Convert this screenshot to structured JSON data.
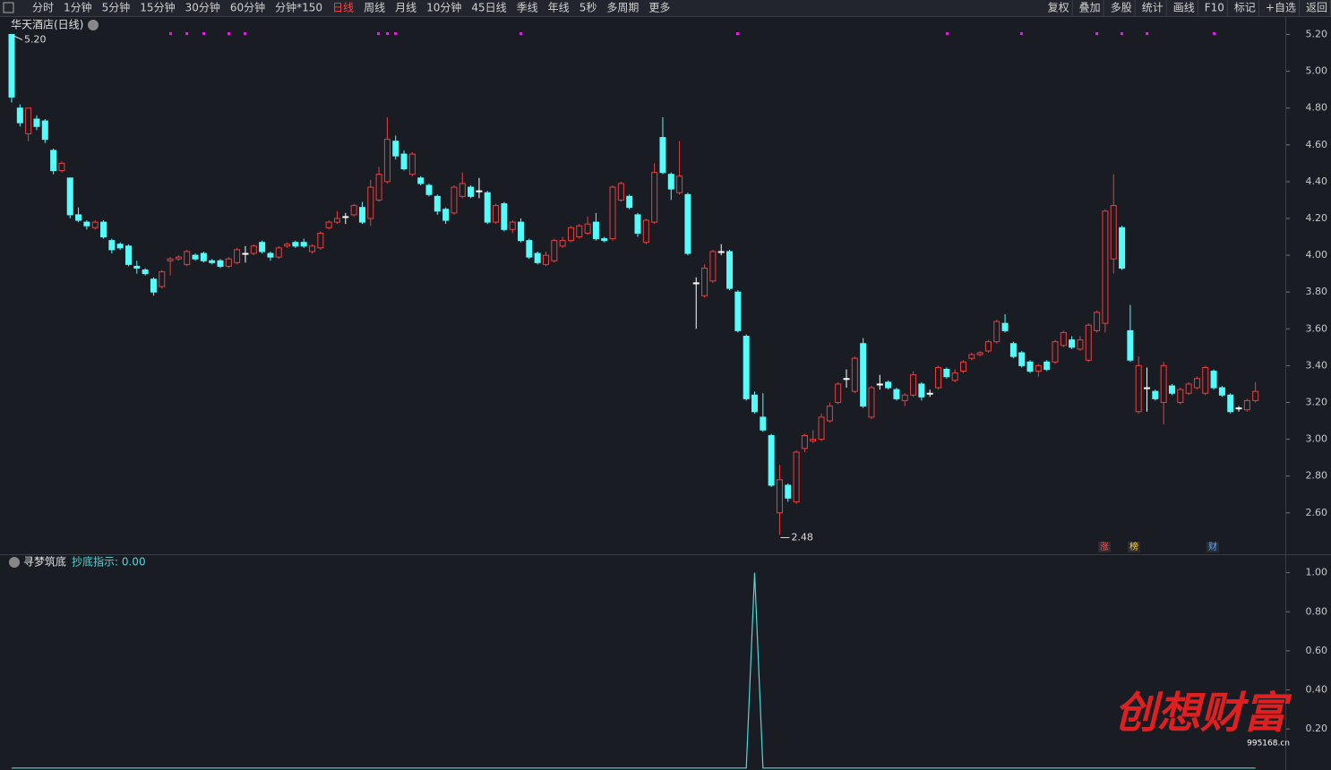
{
  "toolbar": {
    "left": [
      "分时",
      "1分钟",
      "5分钟",
      "15分钟",
      "30分钟",
      "60分钟",
      "分钟*150",
      "日线",
      "周线",
      "月线",
      "10分钟",
      "45日线",
      "季线",
      "年线",
      "5秒",
      "多周期",
      "更多"
    ],
    "active_index": 7,
    "right": [
      "复权",
      "叠加",
      "多股",
      "统计",
      "画线",
      "F10",
      "标记",
      "+自选",
      "返回"
    ]
  },
  "watermark": {
    "title": "创想财富",
    "site": "995168.cn"
  },
  "chart_data": [
    {
      "type": "candlestick",
      "title": "华天酒店(日线)",
      "up_color": "#e8403f",
      "down_color": "#54fcfc",
      "open": [
        5.2,
        4.8,
        4.66,
        4.74,
        4.73,
        4.57,
        4.46,
        4.42,
        4.22,
        4.18,
        4.15,
        4.18,
        4.08,
        4.06,
        4.05,
        3.94,
        3.92,
        3.87,
        3.83,
        3.97,
        3.98,
        3.95,
        4.0,
        4.01,
        3.97,
        3.97,
        3.94,
        3.96,
        4.01,
        4.01,
        4.07,
        4.01,
        3.99,
        4.05,
        4.07,
        4.07,
        4.02,
        4.04,
        4.15,
        4.18,
        4.21,
        4.22,
        4.26,
        4.2,
        4.3,
        4.4,
        4.62,
        4.55,
        4.44,
        4.42,
        4.38,
        4.32,
        4.25,
        4.23,
        4.32,
        4.37,
        4.35,
        4.34,
        4.18,
        4.28,
        4.14,
        4.18,
        4.08,
        4.01,
        3.95,
        3.97,
        4.05,
        4.08,
        4.1,
        4.12,
        4.18,
        4.09,
        4.09,
        4.3,
        4.32,
        4.22,
        4.07,
        4.18,
        4.64,
        4.44,
        4.34,
        4.33,
        3.85,
        3.78,
        3.86,
        4.02,
        4.02,
        3.8,
        3.56,
        3.24,
        3.12,
        3.02,
        2.6,
        2.75,
        2.66,
        2.95,
        2.99,
        3.0,
        3.1,
        3.2,
        3.33,
        3.26,
        3.52,
        3.12,
        3.3,
        3.31,
        3.27,
        3.21,
        3.24,
        3.3,
        3.25,
        3.28,
        3.38,
        3.32,
        3.37,
        3.44,
        3.46,
        3.48,
        3.53,
        3.63,
        3.52,
        3.47,
        3.42,
        3.37,
        3.42,
        3.42,
        3.51,
        3.54,
        3.49,
        3.43,
        3.59,
        3.63,
        3.98,
        4.15,
        3.59,
        3.15,
        3.28,
        3.26,
        3.2,
        3.29,
        3.2,
        3.25,
        3.28,
        3.25,
        3.37,
        3.28,
        3.24,
        3.17,
        3.16,
        3.21
      ],
      "high": [
        5.2,
        4.82,
        4.8,
        4.76,
        4.74,
        4.58,
        4.51,
        4.42,
        4.26,
        4.19,
        4.19,
        4.19,
        4.09,
        4.07,
        4.06,
        3.97,
        3.93,
        3.88,
        3.92,
        3.99,
        4.0,
        4.03,
        4.01,
        4.02,
        3.98,
        3.98,
        3.99,
        4.04,
        4.05,
        4.06,
        4.08,
        4.02,
        4.05,
        4.07,
        4.08,
        4.09,
        4.06,
        4.13,
        4.19,
        4.24,
        4.23,
        4.28,
        4.29,
        4.41,
        4.48,
        4.75,
        4.65,
        4.57,
        4.56,
        4.43,
        4.39,
        4.33,
        4.26,
        4.38,
        4.45,
        4.38,
        4.42,
        4.35,
        4.28,
        4.29,
        4.19,
        4.2,
        4.09,
        4.02,
        4.02,
        4.09,
        4.1,
        4.16,
        4.17,
        4.21,
        4.23,
        4.1,
        4.38,
        4.4,
        4.33,
        4.23,
        4.2,
        4.5,
        4.75,
        4.45,
        4.62,
        4.34,
        3.88,
        3.95,
        4.03,
        4.06,
        4.03,
        3.81,
        3.57,
        3.26,
        3.25,
        3.03,
        2.86,
        2.76,
        2.94,
        3.03,
        3.05,
        3.14,
        3.2,
        3.31,
        3.38,
        3.45,
        3.55,
        3.29,
        3.35,
        3.32,
        3.28,
        3.25,
        3.37,
        3.31,
        3.27,
        3.4,
        3.39,
        3.38,
        3.43,
        3.47,
        3.48,
        3.54,
        3.65,
        3.68,
        3.53,
        3.48,
        3.43,
        3.41,
        3.43,
        3.54,
        3.59,
        3.56,
        3.56,
        3.63,
        3.7,
        4.25,
        4.44,
        4.16,
        3.73,
        3.45,
        3.39,
        3.27,
        3.42,
        3.3,
        3.28,
        3.31,
        3.34,
        3.4,
        3.38,
        3.29,
        3.25,
        3.18,
        3.22,
        3.31
      ],
      "low": [
        4.83,
        4.7,
        4.62,
        4.68,
        4.61,
        4.44,
        4.45,
        4.2,
        4.18,
        4.14,
        4.14,
        4.09,
        4.01,
        4.03,
        3.94,
        3.9,
        3.89,
        3.78,
        3.82,
        3.89,
        3.97,
        3.94,
        3.97,
        3.96,
        3.95,
        3.93,
        3.93,
        3.95,
        3.96,
        4.0,
        4.01,
        3.97,
        3.98,
        4.04,
        4.04,
        4.04,
        4.01,
        4.03,
        4.14,
        4.17,
        4.17,
        4.21,
        4.17,
        4.16,
        4.29,
        4.39,
        4.52,
        4.46,
        4.43,
        4.38,
        4.32,
        4.22,
        4.17,
        4.22,
        4.31,
        4.31,
        4.31,
        4.17,
        4.17,
        4.13,
        4.12,
        4.07,
        3.98,
        3.95,
        3.94,
        3.96,
        4.04,
        4.07,
        4.09,
        4.11,
        4.08,
        4.07,
        4.08,
        4.29,
        4.25,
        4.1,
        4.06,
        4.17,
        4.44,
        4.3,
        4.33,
        4.0,
        3.6,
        3.77,
        3.85,
        4.0,
        3.81,
        3.58,
        3.21,
        3.14,
        3.04,
        2.74,
        2.48,
        2.66,
        2.65,
        2.93,
        2.98,
        2.99,
        3.09,
        3.19,
        3.28,
        3.25,
        3.17,
        3.11,
        3.27,
        3.27,
        3.21,
        3.18,
        3.23,
        3.21,
        3.23,
        3.27,
        3.33,
        3.31,
        3.36,
        3.43,
        3.45,
        3.47,
        3.52,
        3.58,
        3.44,
        3.39,
        3.36,
        3.34,
        3.37,
        3.41,
        3.5,
        3.49,
        3.48,
        3.42,
        3.58,
        3.58,
        3.9,
        3.92,
        3.42,
        3.14,
        3.15,
        3.21,
        3.08,
        3.24,
        3.19,
        3.24,
        3.27,
        3.24,
        3.27,
        3.23,
        3.14,
        3.15,
        3.15,
        3.2
      ],
      "close": [
        4.86,
        4.72,
        4.8,
        4.7,
        4.63,
        4.46,
        4.5,
        4.22,
        4.19,
        4.16,
        4.18,
        4.1,
        4.03,
        4.04,
        3.95,
        3.93,
        3.9,
        3.8,
        3.91,
        3.98,
        3.99,
        4.02,
        3.98,
        3.97,
        3.96,
        3.94,
        3.98,
        4.03,
        4.01,
        4.05,
        4.02,
        3.99,
        4.04,
        4.06,
        4.05,
        4.05,
        4.05,
        4.12,
        4.18,
        4.2,
        4.21,
        4.27,
        4.18,
        4.37,
        4.44,
        4.63,
        4.54,
        4.47,
        4.55,
        4.39,
        4.33,
        4.24,
        4.19,
        4.37,
        4.39,
        4.32,
        4.35,
        4.18,
        4.27,
        4.14,
        4.18,
        4.08,
        3.99,
        3.96,
        4.0,
        4.08,
        4.08,
        4.15,
        4.16,
        4.17,
        4.09,
        4.08,
        4.37,
        4.39,
        4.26,
        4.12,
        4.19,
        4.45,
        4.45,
        4.36,
        4.43,
        4.01,
        3.85,
        3.93,
        4.02,
        4.02,
        3.82,
        3.59,
        3.22,
        3.15,
        3.05,
        2.75,
        2.78,
        2.68,
        2.93,
        3.02,
        3.0,
        3.12,
        3.18,
        3.3,
        3.33,
        3.44,
        3.18,
        3.28,
        3.3,
        3.28,
        3.22,
        3.24,
        3.35,
        3.23,
        3.25,
        3.39,
        3.34,
        3.36,
        3.42,
        3.46,
        3.47,
        3.53,
        3.64,
        3.59,
        3.45,
        3.4,
        3.37,
        3.4,
        3.38,
        3.53,
        3.58,
        3.5,
        3.54,
        3.62,
        3.69,
        4.24,
        4.27,
        3.93,
        3.43,
        3.4,
        3.28,
        3.22,
        3.4,
        3.25,
        3.27,
        3.3,
        3.33,
        3.39,
        3.28,
        3.24,
        3.15,
        3.17,
        3.21,
        3.26
      ],
      "ylim": [
        2.38,
        5.29
      ],
      "yticks": [
        {
          "value": 5.2,
          "label": "5.20"
        },
        {
          "value": 5.0,
          "label": "5.00"
        },
        {
          "value": 4.8,
          "label": "4.80"
        },
        {
          "value": 4.6,
          "label": "4.60"
        },
        {
          "value": 4.4,
          "label": "4.40"
        },
        {
          "value": 4.2,
          "label": "4.20"
        },
        {
          "value": 4.0,
          "label": "4.00"
        },
        {
          "value": 3.8,
          "label": "3.80"
        },
        {
          "value": 3.6,
          "label": "3.60"
        },
        {
          "value": 3.4,
          "label": "3.40"
        },
        {
          "value": 3.2,
          "label": "3.20"
        },
        {
          "value": 3.0,
          "label": "3.00"
        },
        {
          "value": 2.8,
          "label": "2.80"
        },
        {
          "value": 2.6,
          "label": "2.60"
        }
      ],
      "annotations": [
        "5.20",
        "2.48"
      ],
      "markers": [
        "涨",
        "榜",
        "财"
      ]
    },
    {
      "type": "line",
      "title": "寻梦筑底",
      "readout": "抄底指示: 0.00",
      "color": "#4fd8d8",
      "values": [
        0,
        0,
        0,
        0,
        0,
        0,
        0,
        0,
        0,
        0,
        0,
        0,
        0,
        0,
        0,
        0,
        0,
        0,
        0,
        0,
        0,
        0,
        0,
        0,
        0,
        0,
        0,
        0,
        0,
        0,
        0,
        0,
        0,
        0,
        0,
        0,
        0,
        0,
        0,
        0,
        0,
        0,
        0,
        0,
        0,
        0,
        0,
        0,
        0,
        0,
        0,
        0,
        0,
        0,
        0,
        0,
        0,
        0,
        0,
        0,
        0,
        0,
        0,
        0,
        0,
        0,
        0,
        0,
        0,
        0,
        0,
        0,
        0,
        0,
        0,
        0,
        0,
        0,
        0,
        0,
        0,
        0,
        0,
        0,
        0,
        0,
        0,
        0,
        0,
        1,
        0,
        0,
        0,
        0,
        0,
        0,
        0,
        0,
        0,
        0,
        0,
        0,
        0,
        0,
        0,
        0,
        0,
        0,
        0,
        0,
        0,
        0,
        0,
        0,
        0,
        0,
        0,
        0,
        0,
        0,
        0,
        0,
        0,
        0,
        0,
        0,
        0,
        0,
        0,
        0,
        0,
        0,
        0,
        0,
        0,
        0,
        0,
        0,
        0,
        0,
        0,
        0,
        0,
        0,
        0,
        0,
        0,
        0,
        0,
        0
      ],
      "ylim": [
        -0.01,
        1.09
      ],
      "yticks": [
        {
          "value": 1,
          "label": "1.00"
        },
        {
          "value": 0.8,
          "label": "0.80"
        },
        {
          "value": 0.6,
          "label": "0.60"
        },
        {
          "value": 0.4,
          "label": "0.40"
        },
        {
          "value": 0.2,
          "label": "0.20"
        }
      ]
    }
  ]
}
